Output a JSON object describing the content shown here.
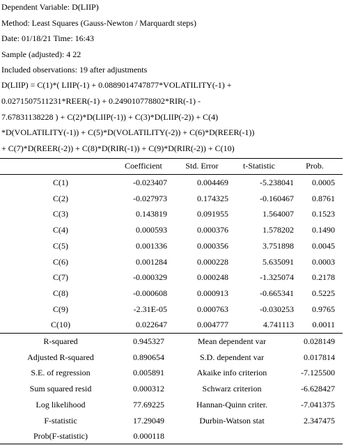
{
  "header": [
    "Dependent Variable: D(LIIP)",
    "Method: Least Squares (Gauss-Newton / Marquardt steps)",
    "Date: 01/18/21 Time: 16:43",
    "Sample (adjusted): 4 22",
    "Included observations: 19 after adjustments"
  ],
  "equation": [
    "D(LIIP) = C(1)*( LIIP(-1) + 0.0889014747877*VOLATILITY(-1) +",
    "0.0271507511231*REER(-1) + 0.249010778802*RIR(-1) -",
    "7.67831138228 ) + C(2)*D(LIIP(-1)) + C(3)*D(LIIP(-2)) + C(4)",
    "*D(VOLATILITY(-1)) + C(5)*D(VOLATILITY(-2)) + C(6)*D(REER(-1))",
    "+ C(7)*D(REER(-2)) + C(8)*D(RIR(-1)) + C(9)*D(RIR(-2)) + C(10)"
  ],
  "table": {
    "columns": [
      "Coefficient",
      "Std. Error",
      "t-Statistic",
      "Prob."
    ],
    "rows": [
      [
        "C(1)",
        "-0.023407",
        "0.004469",
        "-5.238041",
        "0.0005"
      ],
      [
        "C(2)",
        "-0.027973",
        "0.174325",
        "-0.160467",
        "0.8761"
      ],
      [
        "C(3)",
        "0.143819",
        "0.091955",
        "1.564007",
        "0.1523"
      ],
      [
        "C(4)",
        "0.000593",
        "0.000376",
        "1.578202",
        "0.1490"
      ],
      [
        "C(5)",
        "0.001336",
        "0.000356",
        "3.751898",
        "0.0045"
      ],
      [
        "C(6)",
        "0.001284",
        "0.000228",
        "5.635091",
        "0.0003"
      ],
      [
        "C(7)",
        "-0.000329",
        "0.000248",
        "-1.325074",
        "0.2178"
      ],
      [
        "C(8)",
        "-0.000608",
        "0.000913",
        "-0.665341",
        "0.5225"
      ],
      [
        "C(9)",
        "-2.31E-05",
        "0.000763",
        "-0.030253",
        "0.9765"
      ],
      [
        "C(10)",
        "0.022647",
        "0.004777",
        "4.741113",
        "0.0011"
      ]
    ]
  },
  "stats": [
    [
      "R-squared",
      "0.945327",
      "Mean dependent var",
      "0.028149"
    ],
    [
      "Adjusted R-squared",
      "0.890654",
      "S.D. dependent var",
      "0.017814"
    ],
    [
      "S.E. of regression",
      "0.005891",
      "Akaike info criterion",
      "-7.125500"
    ],
    [
      "Sum squared resid",
      "0.000312",
      "Schwarz criterion",
      "-6.628427"
    ],
    [
      "Log likelihood",
      "77.69225",
      "Hannan-Quinn criter.",
      "-7.041375"
    ],
    [
      "F-statistic",
      "17.29049",
      "Durbin-Watson stat",
      "2.347475"
    ],
    [
      "Prob(F-statistic)",
      "0.000118"
    ]
  ]
}
